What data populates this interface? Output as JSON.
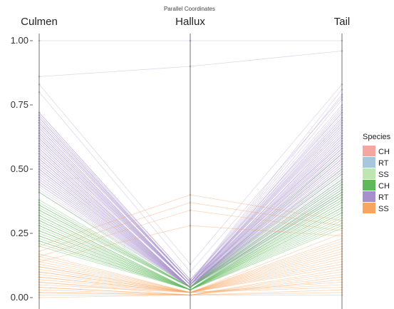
{
  "chart_data": {
    "type": "parallel_coordinates",
    "title": "Parallel Coordinates",
    "axes": [
      "Culmen",
      "Hallux",
      "Tail"
    ],
    "ylim": [
      0,
      1
    ],
    "yticks": [
      {
        "value": 0,
        "label": "0.00"
      },
      {
        "value": 0.25,
        "label": "0.25"
      },
      {
        "value": 0.5,
        "label": "0.50"
      },
      {
        "value": 0.75,
        "label": "0.75"
      },
      {
        "value": 1,
        "label": "1.00"
      }
    ],
    "grid": false,
    "legend": {
      "title": "Species",
      "placement": "right",
      "entries": [
        {
          "label": "CH",
          "color": "#f4a6a0"
        },
        {
          "label": "RT",
          "color": "#a8c6de"
        },
        {
          "label": "SS",
          "color": "#bfe5b0"
        },
        {
          "label": "CH",
          "color": "#5fb85a"
        },
        {
          "label": "RT",
          "color": "#a58fcc"
        },
        {
          "label": "SS",
          "color": "#f7a661"
        }
      ]
    },
    "series": [
      {
        "color": "#a58fcc",
        "opacity": 0.35,
        "lines": [
          [
            1.0,
            1.0,
            1.0
          ],
          [
            0.86,
            0.9,
            0.96
          ],
          [
            0.83,
            0.13,
            0.83
          ],
          [
            0.8,
            0.1,
            0.78
          ],
          [
            0.72,
            0.07,
            0.72
          ],
          [
            0.71,
            0.07,
            0.7
          ],
          [
            0.7,
            0.06,
            0.69
          ],
          [
            0.69,
            0.06,
            0.68
          ],
          [
            0.68,
            0.06,
            0.67
          ],
          [
            0.67,
            0.06,
            0.66
          ],
          [
            0.66,
            0.05,
            0.65
          ],
          [
            0.65,
            0.05,
            0.64
          ],
          [
            0.64,
            0.05,
            0.63
          ],
          [
            0.63,
            0.05,
            0.62
          ],
          [
            0.62,
            0.05,
            0.61
          ],
          [
            0.61,
            0.05,
            0.6
          ],
          [
            0.6,
            0.05,
            0.59
          ],
          [
            0.59,
            0.04,
            0.58
          ],
          [
            0.58,
            0.04,
            0.57
          ],
          [
            0.57,
            0.04,
            0.56
          ],
          [
            0.56,
            0.04,
            0.55
          ],
          [
            0.55,
            0.04,
            0.54
          ],
          [
            0.54,
            0.04,
            0.53
          ],
          [
            0.53,
            0.04,
            0.52
          ],
          [
            0.52,
            0.04,
            0.51
          ],
          [
            0.51,
            0.04,
            0.5
          ],
          [
            0.5,
            0.04,
            0.49
          ],
          [
            0.49,
            0.04,
            0.48
          ],
          [
            0.48,
            0.04,
            0.47
          ],
          [
            0.47,
            0.04,
            0.46
          ],
          [
            0.46,
            0.04,
            0.45
          ],
          [
            0.45,
            0.04,
            0.44
          ],
          [
            0.44,
            0.04,
            0.43
          ],
          [
            0.43,
            0.04,
            0.42
          ],
          [
            0.42,
            0.04,
            0.41
          ],
          [
            0.41,
            0.03,
            0.4
          ],
          [
            0.7,
            0.06,
            0.75
          ],
          [
            0.68,
            0.06,
            0.73
          ],
          [
            0.66,
            0.05,
            0.71
          ],
          [
            0.64,
            0.05,
            0.69
          ],
          [
            0.62,
            0.05,
            0.67
          ],
          [
            0.6,
            0.05,
            0.65
          ],
          [
            0.58,
            0.04,
            0.63
          ],
          [
            0.56,
            0.04,
            0.61
          ],
          [
            0.54,
            0.04,
            0.59
          ],
          [
            0.52,
            0.04,
            0.57
          ],
          [
            0.5,
            0.04,
            0.55
          ],
          [
            0.48,
            0.04,
            0.53
          ],
          [
            0.46,
            0.04,
            0.51
          ],
          [
            0.44,
            0.04,
            0.49
          ],
          [
            0.72,
            0.07,
            0.6
          ],
          [
            0.7,
            0.06,
            0.58
          ],
          [
            0.68,
            0.06,
            0.56
          ],
          [
            0.66,
            0.05,
            0.54
          ],
          [
            0.64,
            0.05,
            0.52
          ],
          [
            0.62,
            0.05,
            0.5
          ],
          [
            0.6,
            0.05,
            0.48
          ],
          [
            0.58,
            0.04,
            0.46
          ],
          [
            0.56,
            0.04,
            0.44
          ],
          [
            0.54,
            0.04,
            0.42
          ],
          [
            0.52,
            0.04,
            0.4
          ],
          [
            0.5,
            0.04,
            0.38
          ],
          [
            0.71,
            0.06,
            0.77
          ],
          [
            0.69,
            0.06,
            0.79
          ],
          [
            0.67,
            0.06,
            0.81
          ],
          [
            0.65,
            0.05,
            0.74
          ],
          [
            0.63,
            0.05,
            0.72
          ],
          [
            0.61,
            0.05,
            0.7
          ],
          [
            0.59,
            0.05,
            0.68
          ],
          [
            0.57,
            0.04,
            0.66
          ],
          [
            0.55,
            0.04,
            0.64
          ],
          [
            0.53,
            0.04,
            0.62
          ],
          [
            0.51,
            0.04,
            0.6
          ],
          [
            0.49,
            0.04,
            0.58
          ],
          [
            0.47,
            0.04,
            0.56
          ],
          [
            0.45,
            0.04,
            0.54
          ]
        ]
      },
      {
        "color": "#5fb85a",
        "opacity": 0.45,
        "lines": [
          [
            0.41,
            0.04,
            0.56
          ],
          [
            0.38,
            0.04,
            0.5
          ],
          [
            0.37,
            0.04,
            0.46
          ],
          [
            0.36,
            0.04,
            0.44
          ],
          [
            0.35,
            0.04,
            0.42
          ],
          [
            0.34,
            0.04,
            0.41
          ],
          [
            0.33,
            0.04,
            0.4
          ],
          [
            0.32,
            0.03,
            0.39
          ],
          [
            0.31,
            0.03,
            0.38
          ],
          [
            0.3,
            0.03,
            0.37
          ],
          [
            0.29,
            0.03,
            0.36
          ],
          [
            0.28,
            0.03,
            0.35
          ],
          [
            0.27,
            0.03,
            0.34
          ],
          [
            0.26,
            0.03,
            0.33
          ],
          [
            0.25,
            0.03,
            0.32
          ],
          [
            0.24,
            0.03,
            0.31
          ],
          [
            0.23,
            0.03,
            0.3
          ],
          [
            0.22,
            0.03,
            0.29
          ],
          [
            0.21,
            0.03,
            0.28
          ],
          [
            0.2,
            0.03,
            0.27
          ],
          [
            0.36,
            0.04,
            0.48
          ],
          [
            0.34,
            0.04,
            0.45
          ],
          [
            0.32,
            0.03,
            0.43
          ],
          [
            0.3,
            0.03,
            0.41
          ],
          [
            0.28,
            0.03,
            0.39
          ],
          [
            0.26,
            0.03,
            0.37
          ],
          [
            0.24,
            0.03,
            0.35
          ],
          [
            0.22,
            0.03,
            0.33
          ]
        ]
      },
      {
        "color": "#f7a661",
        "opacity": 0.45,
        "lines": [
          [
            0.2,
            0.4,
            0.3
          ],
          [
            0.18,
            0.37,
            0.28
          ],
          [
            0.16,
            0.34,
            0.26
          ],
          [
            0.14,
            0.28,
            0.24
          ],
          [
            0.17,
            0.02,
            0.25
          ],
          [
            0.16,
            0.02,
            0.23
          ],
          [
            0.15,
            0.02,
            0.22
          ],
          [
            0.14,
            0.02,
            0.21
          ],
          [
            0.13,
            0.02,
            0.2
          ],
          [
            0.12,
            0.02,
            0.19
          ],
          [
            0.11,
            0.02,
            0.18
          ],
          [
            0.1,
            0.02,
            0.17
          ],
          [
            0.09,
            0.02,
            0.16
          ],
          [
            0.08,
            0.02,
            0.15
          ],
          [
            0.07,
            0.02,
            0.14
          ],
          [
            0.06,
            0.02,
            0.13
          ],
          [
            0.05,
            0.02,
            0.12
          ],
          [
            0.04,
            0.01,
            0.11
          ],
          [
            0.03,
            0.01,
            0.1
          ],
          [
            0.02,
            0.01,
            0.09
          ],
          [
            0.01,
            0.01,
            0.08
          ],
          [
            0.0,
            0.01,
            0.07
          ],
          [
            0.12,
            0.02,
            0.06
          ],
          [
            0.1,
            0.02,
            0.05
          ],
          [
            0.08,
            0.02,
            0.04
          ],
          [
            0.06,
            0.01,
            0.03
          ],
          [
            0.04,
            0.01,
            0.02
          ],
          [
            0.02,
            0.01,
            0.01
          ]
        ]
      }
    ]
  }
}
